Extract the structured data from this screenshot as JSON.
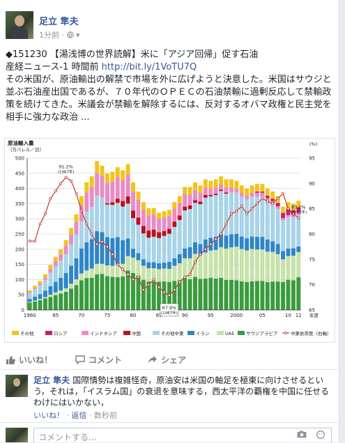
{
  "post": {
    "author": "足立 隼夫",
    "time": "1分前",
    "privacy_icon": "globe-icon",
    "line1": "◆151230 【湯浅博の世界読解】米に「アジア回帰」促す石油",
    "line2_prefix": "産経ニュース-1 時間前 ",
    "link": "http://bit.ly/1VoTU7Q",
    "body": "その米国が、原油輸出の解禁で市場を外に広げようと決意した。米国はサウジと並ぶ石油産出国であるが、７０年代のＯＰＥＣの石油禁輸に過剰反応して禁輸政策を続けてきた。米議会が禁輸を解除するには、反対するオバマ政権と民主党を相手に強力な政治 ..."
  },
  "chart_data": {
    "type": "bar",
    "title": "原油輸入量",
    "ylabel": "（万バレル／日）",
    "y2label": "(%)",
    "xlabel": "年度",
    "ylim": [
      0,
      500
    ],
    "y2lim": [
      65,
      95
    ],
    "yticks": [
      "0",
      "50",
      "100",
      "150",
      "200",
      "250",
      "300",
      "350",
      "400",
      "450",
      "500"
    ],
    "y2ticks": [
      "65",
      "70",
      "75",
      "80",
      "85",
      "90",
      "95"
    ],
    "xticks": [
      "1960",
      "65",
      "70",
      "75",
      "80",
      "85",
      "90",
      "95",
      "2000",
      "05",
      "10",
      "12"
    ],
    "annotations": [
      {
        "text": "91.2%",
        "sub": "(1967年)"
      },
      {
        "text": "67.9%",
        "sub": "(1987年)"
      },
      {
        "text": "83.2%",
        "sub": "(2012年)"
      }
    ],
    "years": [
      1960,
      1961,
      1962,
      1963,
      1964,
      1965,
      1966,
      1967,
      1968,
      1969,
      1970,
      1971,
      1972,
      1973,
      1974,
      1975,
      1976,
      1977,
      1978,
      1979,
      1980,
      1981,
      1982,
      1983,
      1984,
      1985,
      1986,
      1987,
      1988,
      1989,
      1990,
      1991,
      1992,
      1993,
      1994,
      1995,
      1996,
      1997,
      1998,
      1999,
      2000,
      2001,
      2002,
      2003,
      2004,
      2005,
      2006,
      2007,
      2008,
      2009,
      2010,
      2011,
      2012
    ],
    "totals": [
      65,
      80,
      95,
      118,
      148,
      175,
      200,
      230,
      270,
      315,
      375,
      420,
      440,
      490,
      475,
      445,
      455,
      470,
      460,
      480,
      420,
      390,
      355,
      335,
      335,
      320,
      325,
      330,
      355,
      375,
      405,
      405,
      420,
      410,
      430,
      425,
      430,
      440,
      430,
      430,
      425,
      410,
      400,
      410,
      415,
      415,
      400,
      390,
      375,
      340,
      355,
      350,
      360
    ],
    "series": [
      {
        "name": "その他",
        "color": "#f2c418",
        "shares": [
          0.1,
          0.1,
          0.09,
          0.09,
          0.09,
          0.08,
          0.08,
          0.08,
          0.08,
          0.08,
          0.08,
          0.08,
          0.08,
          0.08,
          0.07,
          0.07,
          0.07,
          0.07,
          0.07,
          0.07,
          0.07,
          0.07,
          0.07,
          0.07,
          0.06,
          0.06,
          0.06,
          0.06,
          0.06,
          0.06,
          0.06,
          0.06,
          0.06,
          0.06,
          0.06,
          0.06,
          0.06,
          0.06,
          0.06,
          0.06,
          0.06,
          0.06,
          0.06,
          0.06,
          0.06,
          0.06,
          0.06,
          0.06,
          0.06,
          0.06,
          0.06,
          0.06,
          0.06
        ]
      },
      {
        "name": "ロシア",
        "color": "#c41e6e",
        "shares": [
          0,
          0,
          0,
          0,
          0,
          0,
          0,
          0,
          0,
          0,
          0,
          0,
          0,
          0,
          0,
          0,
          0,
          0,
          0,
          0,
          0,
          0,
          0,
          0,
          0,
          0,
          0,
          0,
          0,
          0,
          0,
          0,
          0,
          0,
          0,
          0,
          0,
          0,
          0,
          0,
          0,
          0,
          0,
          0,
          0.01,
          0.01,
          0.02,
          0.02,
          0.03,
          0.05,
          0.06,
          0.05,
          0.05
        ]
      },
      {
        "name": "インドネシア",
        "color": "#e98cc5",
        "shares": [
          0.04,
          0.05,
          0.06,
          0.07,
          0.08,
          0.1,
          0.11,
          0.12,
          0.12,
          0.13,
          0.14,
          0.15,
          0.15,
          0.15,
          0.15,
          0.15,
          0.15,
          0.15,
          0.15,
          0.15,
          0.15,
          0.15,
          0.15,
          0.15,
          0.15,
          0.14,
          0.14,
          0.13,
          0.12,
          0.11,
          0.1,
          0.09,
          0.08,
          0.07,
          0.06,
          0.05,
          0.05,
          0.04,
          0.04,
          0.04,
          0.03,
          0.03,
          0.03,
          0.03,
          0.03,
          0.03,
          0.03,
          0.03,
          0.02,
          0.02,
          0.02,
          0.02,
          0.02
        ]
      },
      {
        "name": "中国",
        "color": "#b5121b",
        "shares": [
          0,
          0,
          0,
          0,
          0,
          0,
          0,
          0,
          0,
          0,
          0,
          0,
          0,
          0,
          0,
          0.01,
          0.02,
          0.03,
          0.04,
          0.05,
          0.06,
          0.06,
          0.07,
          0.07,
          0.07,
          0.06,
          0.05,
          0.05,
          0.05,
          0.04,
          0.03,
          0.03,
          0.02,
          0.02,
          0.02,
          0.01,
          0.01,
          0.01,
          0.01,
          0,
          0,
          0,
          0,
          0,
          0,
          0,
          0,
          0,
          0,
          0,
          0,
          0,
          0
        ]
      },
      {
        "name": "その他中東",
        "color": "#a8d3e8",
        "shares": [
          0.3,
          0.3,
          0.3,
          0.3,
          0.3,
          0.29,
          0.28,
          0.27,
          0.26,
          0.25,
          0.24,
          0.24,
          0.24,
          0.24,
          0.24,
          0.24,
          0.24,
          0.24,
          0.24,
          0.24,
          0.24,
          0.24,
          0.24,
          0.24,
          0.25,
          0.26,
          0.27,
          0.28,
          0.29,
          0.3,
          0.31,
          0.31,
          0.31,
          0.32,
          0.32,
          0.32,
          0.32,
          0.32,
          0.32,
          0.32,
          0.32,
          0.32,
          0.32,
          0.32,
          0.32,
          0.32,
          0.31,
          0.31,
          0.31,
          0.3,
          0.29,
          0.29,
          0.29
        ]
      },
      {
        "name": "イラン",
        "color": "#2e85c8",
        "shares": [
          0.15,
          0.16,
          0.17,
          0.18,
          0.19,
          0.2,
          0.21,
          0.22,
          0.22,
          0.22,
          0.22,
          0.22,
          0.22,
          0.22,
          0.22,
          0.21,
          0.2,
          0.19,
          0.17,
          0.12,
          0.07,
          0.06,
          0.06,
          0.06,
          0.06,
          0.06,
          0.06,
          0.07,
          0.07,
          0.08,
          0.08,
          0.09,
          0.09,
          0.09,
          0.1,
          0.1,
          0.1,
          0.1,
          0.1,
          0.1,
          0.1,
          0.1,
          0.1,
          0.1,
          0.1,
          0.1,
          0.1,
          0.09,
          0.09,
          0.08,
          0.07,
          0.07,
          0.05
        ]
      },
      {
        "name": "UAE",
        "color": "#c6e2a9",
        "shares": [
          0.04,
          0.04,
          0.04,
          0.04,
          0.05,
          0.05,
          0.05,
          0.05,
          0.06,
          0.06,
          0.06,
          0.06,
          0.07,
          0.07,
          0.07,
          0.08,
          0.08,
          0.09,
          0.09,
          0.1,
          0.12,
          0.13,
          0.13,
          0.13,
          0.13,
          0.13,
          0.13,
          0.13,
          0.14,
          0.15,
          0.16,
          0.17,
          0.18,
          0.19,
          0.2,
          0.21,
          0.22,
          0.23,
          0.24,
          0.25,
          0.26,
          0.26,
          0.26,
          0.26,
          0.25,
          0.25,
          0.25,
          0.25,
          0.24,
          0.22,
          0.22,
          0.23,
          0.23
        ]
      },
      {
        "name": "サウジアラビア",
        "color": "#3a9b3e",
        "shares": [
          0.37,
          0.35,
          0.34,
          0.32,
          0.29,
          0.28,
          0.27,
          0.26,
          0.26,
          0.26,
          0.26,
          0.25,
          0.24,
          0.24,
          0.25,
          0.25,
          0.24,
          0.23,
          0.24,
          0.27,
          0.29,
          0.29,
          0.28,
          0.28,
          0.28,
          0.29,
          0.29,
          0.28,
          0.27,
          0.26,
          0.26,
          0.25,
          0.26,
          0.25,
          0.24,
          0.25,
          0.24,
          0.24,
          0.23,
          0.23,
          0.23,
          0.23,
          0.23,
          0.23,
          0.23,
          0.23,
          0.23,
          0.24,
          0.25,
          0.27,
          0.28,
          0.28,
          0.3
        ]
      }
    ],
    "line": {
      "name": "中東依存度（右軸）",
      "color": "#c0392b",
      "values": [
        78.6,
        78.6,
        82.0,
        84.0,
        87.0,
        88.5,
        90.0,
        91.2,
        90.5,
        88.0,
        84.6,
        82.0,
        80.0,
        78.0,
        78.5,
        77.5,
        76.0,
        74.0,
        73.0,
        72.0,
        71.0,
        71.5,
        69.0,
        70.0,
        71.0,
        69.5,
        68.5,
        67.9,
        69.0,
        70.5,
        71.5,
        72.0,
        74.5,
        76.0,
        77.0,
        78.0,
        79.0,
        80.0,
        82.0,
        84.0,
        84.5,
        85.5,
        84.0,
        85.0,
        86.0,
        87.0,
        86.5,
        86.0,
        87.0,
        88.0,
        85.0,
        84.0,
        83.2
      ]
    }
  },
  "actions": {
    "like": "いいね！",
    "comment": "コメント",
    "share": "シェア"
  },
  "comment": {
    "author": "足立 隼夫",
    "text": "国際情勢は複雑怪奇，原油安は米国の軸足を極東に向けさせるという，それは，「イスラム国」の衰退を意味する，西太平洋の覇権を中国に任せるわけにはいかない，",
    "like": "いいね！",
    "sep": "·",
    "reply": "返信",
    "time": "数秒前"
  },
  "reply_box": {
    "placeholder": "コメントする..."
  }
}
